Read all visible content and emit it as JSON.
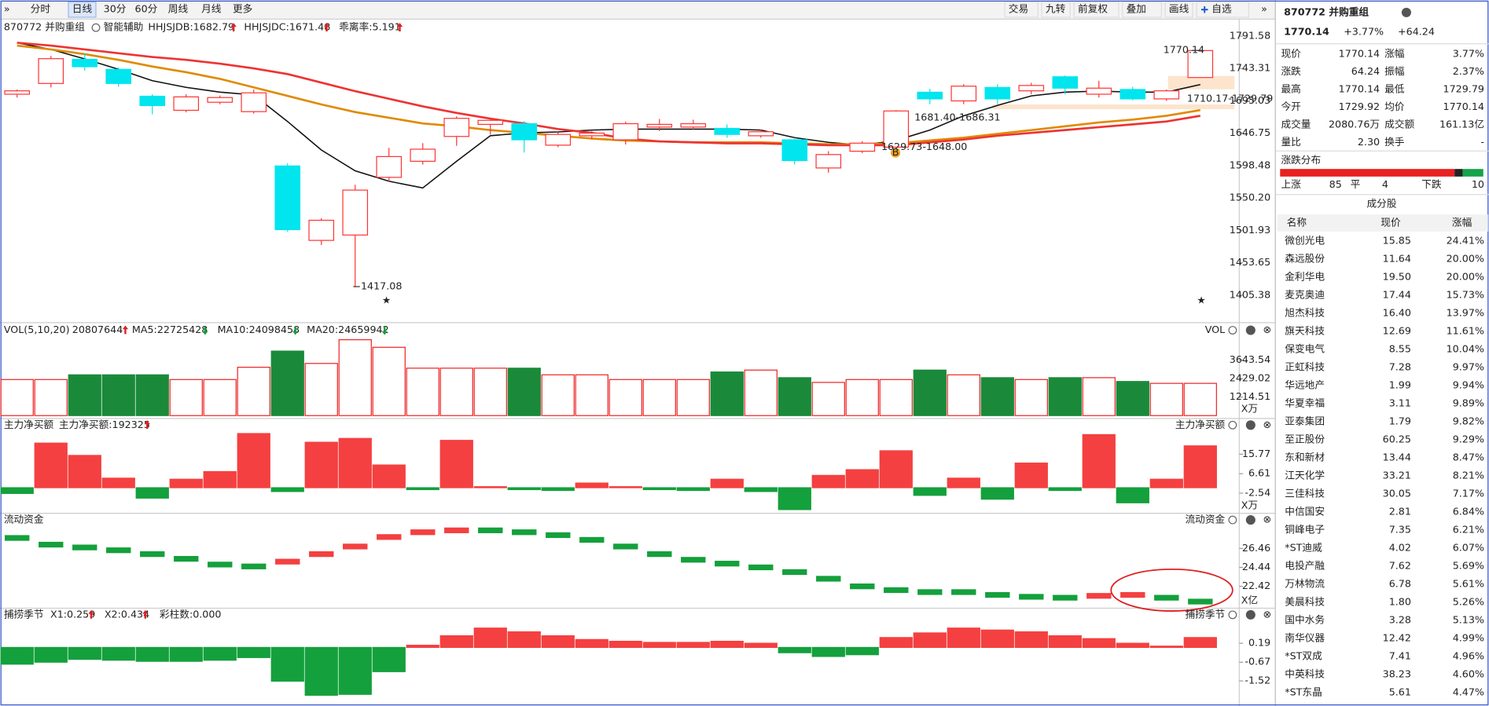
{
  "toolbar": {
    "periods": [
      "分时",
      "日线",
      "30分",
      "60分",
      "周线",
      "月线",
      "更多"
    ],
    "active_index": 1,
    "tools": [
      "交易",
      "九转",
      "前复权",
      "叠加",
      "画线",
      "自选"
    ]
  },
  "chart_data": [
    {
      "type": "candlestick",
      "title": "870772 并购重组",
      "legend": [
        {
          "text": "智能辅助",
          "color": "#333333"
        },
        {
          "text": "HHJSJDB:1682.79",
          "color": "#e08a00",
          "arrow": "up"
        },
        {
          "text": "HHJSJDC:1671.48",
          "color": "#e83030",
          "arrow": "up"
        },
        {
          "text": "乖离率:5.191",
          "color": "#e08a00",
          "arrow": "up"
        }
      ],
      "annotations": [
        "1770.14",
        "1710.17-1729.79",
        "1681.40-1686.31",
        "1629.73-1648.00",
        "1417.08",
        "B"
      ],
      "open": [
        1705,
        1721,
        1757,
        1742,
        1702,
        1681,
        1693,
        1679,
        1598,
        1487,
        1495,
        1581,
        1605,
        1642,
        1660,
        1661,
        1629,
        1643,
        1637,
        1656,
        1656,
        1654,
        1643,
        1637,
        1595,
        1620,
        1626,
        1708,
        1695,
        1715,
        1710,
        1731,
        1705,
        1712,
        1698,
        1729.92
      ],
      "high": [
        1712,
        1762,
        1766,
        1745,
        1705,
        1705,
        1703,
        1712,
        1602,
        1520,
        1570,
        1625,
        1632,
        1672,
        1670,
        1665,
        1648,
        1650,
        1664,
        1668,
        1667,
        1660,
        1652,
        1640,
        1620,
        1635,
        1681.4,
        1713,
        1720,
        1720,
        1722,
        1733,
        1725,
        1716,
        1712,
        1770.14
      ],
      "low": [
        1700,
        1715,
        1740,
        1716,
        1675,
        1678,
        1690,
        1676,
        1500,
        1480,
        1417.08,
        1575,
        1600,
        1628,
        1645,
        1618,
        1626,
        1638,
        1630,
        1650,
        1652,
        1640,
        1640,
        1600,
        1588,
        1617,
        1620,
        1690,
        1690,
        1690,
        1705,
        1705,
        1700,
        1696,
        1695,
        1729.79
      ],
      "close": [
        1710,
        1758,
        1746,
        1721,
        1688,
        1701,
        1700,
        1707,
        1503,
        1517,
        1562,
        1612,
        1623,
        1669,
        1666,
        1637,
        1645,
        1647,
        1661,
        1660,
        1661,
        1645,
        1649,
        1606,
        1615,
        1632,
        1680,
        1698,
        1717,
        1698,
        1718,
        1714,
        1714,
        1698,
        1710,
        1770.14
      ],
      "up_color": "#ff3333",
      "down_color": "#00e5ee",
      "series": [
        {
          "color": "#111111",
          "values": [
            1781.7,
            1771.8,
            1757.6,
            1742.1,
            1725.1,
            1715.2,
            1708.1,
            1703.9,
            1664.3,
            1621.8,
            1590.7,
            1575.2,
            1565.2,
            1604.9,
            1643.1,
            1647.3,
            1648.7,
            1651.5,
            1652.9,
            1652.9,
            1652.9,
            1652.9,
            1651.5,
            1640.2,
            1633.2,
            1628.9,
            1636.0,
            1651.5,
            1672.8,
            1688.3,
            1702.5,
            1708.1,
            1709.6,
            1708.1,
            1708.1,
            1719.4
          ]
        },
        {
          "color": "#e08a00",
          "values": [
            1777.5,
            1771.8,
            1764.7,
            1756.2,
            1746.3,
            1737.8,
            1727.9,
            1715.2,
            1702.5,
            1689.7,
            1678.4,
            1669.9,
            1661.4,
            1657.2,
            1651.5,
            1647.3,
            1643.1,
            1638.8,
            1636.0,
            1634.6,
            1633.2,
            1633.2,
            1633.2,
            1631.7,
            1630.3,
            1630.3,
            1631.7,
            1636.0,
            1640.2,
            1645.9,
            1651.5,
            1657.2,
            1662.9,
            1667.1,
            1672.8,
            1681.3
          ]
        },
        {
          "color": "#ee3333",
          "values": [
            1781.7,
            1777.5,
            1771.8,
            1766.1,
            1760.5,
            1756.2,
            1750.6,
            1743.5,
            1735.0,
            1722.3,
            1709.5,
            1698.2,
            1686.9,
            1677.0,
            1668.5,
            1661.4,
            1653.0,
            1647.3,
            1638.8,
            1634.6,
            1633.2,
            1631.7,
            1631.7,
            1630.3,
            1628.9,
            1628.9,
            1628.9,
            1633.2,
            1637.4,
            1643.1,
            1647.3,
            1651.5,
            1655.8,
            1660.0,
            1664.3,
            1672.8
          ]
        }
      ],
      "ylim": [
        1371.4,
        1817.0
      ],
      "yticks": [
        1791.58,
        1743.31,
        1695.03,
        1646.75,
        1598.48,
        {
          "value": 1550.2,
          "label": "1550.20"
        },
        1501.93,
        1453.65,
        1405.38
      ]
    },
    {
      "type": "bar",
      "color_by": "direction",
      "title": "VOL(5,10,20)",
      "right_label": "VOL",
      "axis_label": "X万",
      "legend": [
        {
          "text": "20807644",
          "color": "#111111",
          "arrow": "up"
        },
        {
          "text": "MA5:22725428",
          "color": "#e08a00",
          "arrow": "down"
        },
        {
          "text": "MA10:24098458",
          "color": "#dd22dd",
          "arrow": "down"
        },
        {
          "text": "MA20:24659942",
          "color": "#22aa22",
          "arrow": "down"
        }
      ],
      "values": [
        2367,
        2367,
        2678,
        2678,
        2678,
        2367,
        2367,
        3176,
        4235,
        3425,
        4982,
        4484,
        3114,
        3114,
        3114,
        3114,
        2678,
        2678,
        2367,
        2367,
        2367,
        2865,
        2989,
        2491,
        2180,
        2367,
        2367,
        2989,
        2678,
        2491,
        2367,
        2491,
        2491,
        2242,
        2118,
        2118
      ],
      "up_color": "#ee2222",
      "down_color": "#1a8a3a",
      "ylim": [
        0,
        5169
      ],
      "yticks": [
        3643.54,
        2429.02,
        1214.51
      ]
    },
    {
      "type": "bar",
      "color_by": "sign",
      "title": "主力净买额",
      "right_label": "主力净买额",
      "axis_label": "X万",
      "legend": [
        {
          "text": "主力净买额:192325",
          "color": "#e83030",
          "arrow": "up"
        }
      ],
      "values": [
        -2.7,
        21,
        15.2,
        4.5,
        -4.9,
        4.0,
        7.6,
        25.5,
        -1.8,
        21.4,
        23.2,
        10.7,
        -0.9,
        22.3,
        0.5,
        -0.9,
        -1.3,
        2.2,
        0.5,
        -0.9,
        -1.3,
        4.0,
        -1.8,
        -10.3,
        5.8,
        8.5,
        17.4,
        -3.6,
        4.5,
        -5.4,
        11.6,
        -1.3,
        25.0,
        -7.1,
        4.0,
        19.7
      ],
      "up_color": "#f44040",
      "down_color": "#14a03c",
      "ylim": [
        -11.6,
        26.35
      ],
      "yticks": [
        15.77,
        6.61,
        -2.54
      ]
    },
    {
      "type": "level",
      "color_by": "change",
      "title": "流动资金",
      "right_label": "流动资金",
      "axis_label": "X亿",
      "values": [
        27.57,
        26.86,
        26.56,
        26.26,
        25.85,
        25.35,
        24.74,
        24.54,
        25.05,
        25.85,
        26.66,
        27.67,
        28.18,
        28.38,
        28.38,
        28.18,
        27.87,
        27.37,
        26.66,
        25.85,
        25.25,
        24.84,
        24.44,
        23.94,
        23.23,
        22.42,
        22.02,
        21.81,
        21.81,
        21.51,
        21.31,
        21.21,
        21.41,
        21.51,
        21.21,
        20.8
      ],
      "up_color": "#f44040",
      "down_color": "#14a03c",
      "ylim": [
        20.2,
        28.78
      ],
      "yticks": [
        26.46,
        24.44,
        22.42
      ]
    },
    {
      "type": "bar",
      "color_by": "sign",
      "title": "捕捞季节",
      "right_label": "捕捞季节",
      "legend": [
        {
          "text": "X1:0.259",
          "color": "#e08a00",
          "arrow": "up"
        },
        {
          "text": "X2:0.434",
          "color": "#dd22dd",
          "arrow": "up"
        },
        {
          "text": "彩柱数:0.000",
          "color": "#22aa22"
        }
      ],
      "values": [
        -0.76,
        -0.67,
        -0.54,
        -0.58,
        -0.63,
        -0.63,
        -0.58,
        -0.46,
        -1.53,
        -2.17,
        -2.13,
        -1.1,
        0.1,
        0.53,
        0.88,
        0.71,
        0.53,
        0.36,
        0.28,
        0.23,
        0.23,
        0.28,
        0.19,
        -0.24,
        -0.41,
        -0.33,
        0.45,
        0.66,
        0.88,
        0.79,
        0.71,
        0.53,
        0.4,
        0.19,
        0.06,
        0.45
      ],
      "up_color": "#f44040",
      "down_color": "#14a03c",
      "ylim": [
        -2.48,
        1.18
      ],
      "yticks": [
        0.19,
        -0.67,
        -1.52
      ]
    }
  ],
  "quote": {
    "title": "870772 并购重组",
    "price": "1770.14",
    "change_pct": "+3.77%",
    "change": "+64.24",
    "rows": [
      [
        "现价",
        "1770.14",
        "涨幅",
        "3.77%"
      ],
      [
        "涨跌",
        "64.24",
        "振幅",
        "2.37%"
      ],
      [
        "最高",
        "1770.14",
        "最低",
        "1729.79"
      ],
      [
        "今开",
        "1729.92",
        "均价",
        "1770.14"
      ],
      [
        "成交量",
        "2080.76万",
        "成交额",
        "161.13亿"
      ],
      [
        "量比",
        "2.30",
        "换手",
        "-"
      ]
    ]
  },
  "distribution": {
    "title": "涨跌分布",
    "items": [
      {
        "label": "上涨",
        "value": 85,
        "color": "#e82020"
      },
      {
        "label": "平",
        "value": 4,
        "color": "#222222"
      },
      {
        "label": "下跌",
        "value": 10,
        "color": "#16a34a"
      }
    ]
  },
  "constituents": {
    "title": "成分股",
    "columns": [
      "名称",
      "现价",
      "涨幅"
    ],
    "rows": [
      {
        "name": "微创光电",
        "price": "15.85",
        "change": "24.41%"
      },
      {
        "name": "森远股份",
        "price": "11.64",
        "change": "20.00%",
        "highlight": true
      },
      {
        "name": "金利华电",
        "price": "19.50",
        "change": "20.00%",
        "highlight": true
      },
      {
        "name": "麦克奥迪",
        "price": "17.44",
        "change": "15.73%"
      },
      {
        "name": "旭杰科技",
        "price": "16.40",
        "change": "13.97%"
      },
      {
        "name": "旗天科技",
        "price": "12.69",
        "change": "11.61%"
      },
      {
        "name": "保变电气",
        "price": "8.55",
        "change": "10.04%"
      },
      {
        "name": "正虹科技",
        "price": "7.28",
        "change": "9.97%"
      },
      {
        "name": "华远地产",
        "price": "1.99",
        "change": "9.94%"
      },
      {
        "name": "华夏幸福",
        "price": "3.11",
        "change": "9.89%"
      },
      {
        "name": "亚泰集团",
        "price": "1.79",
        "change": "9.82%"
      },
      {
        "name": "至正股份",
        "price": "60.25",
        "change": "9.29%"
      },
      {
        "name": "东和新材",
        "price": "13.44",
        "change": "8.47%"
      },
      {
        "name": "江天化学",
        "price": "33.21",
        "change": "8.21%"
      },
      {
        "name": "三佳科技",
        "price": "30.05",
        "change": "7.17%"
      },
      {
        "name": "中信国安",
        "price": "2.81",
        "change": "6.84%"
      },
      {
        "name": "铜峰电子",
        "price": "7.35",
        "change": "6.21%"
      },
      {
        "name": "*ST迪威",
        "price": "4.02",
        "change": "6.07%"
      },
      {
        "name": "电投产融",
        "price": "7.62",
        "change": "5.69%"
      },
      {
        "name": "万林物流",
        "price": "6.78",
        "change": "5.61%"
      },
      {
        "name": "美晨科技",
        "price": "1.80",
        "change": "5.26%"
      },
      {
        "name": "国中水务",
        "price": "3.28",
        "change": "5.13%"
      },
      {
        "name": "南华仪器",
        "price": "12.42",
        "change": "4.99%",
        "highlight": true
      },
      {
        "name": "*ST双成",
        "price": "7.41",
        "change": "4.96%"
      },
      {
        "name": "中英科技",
        "price": "38.23",
        "change": "4.60%"
      },
      {
        "name": "*ST东晶",
        "price": "5.61",
        "change": "4.47%",
        "highlight": true
      }
    ]
  }
}
